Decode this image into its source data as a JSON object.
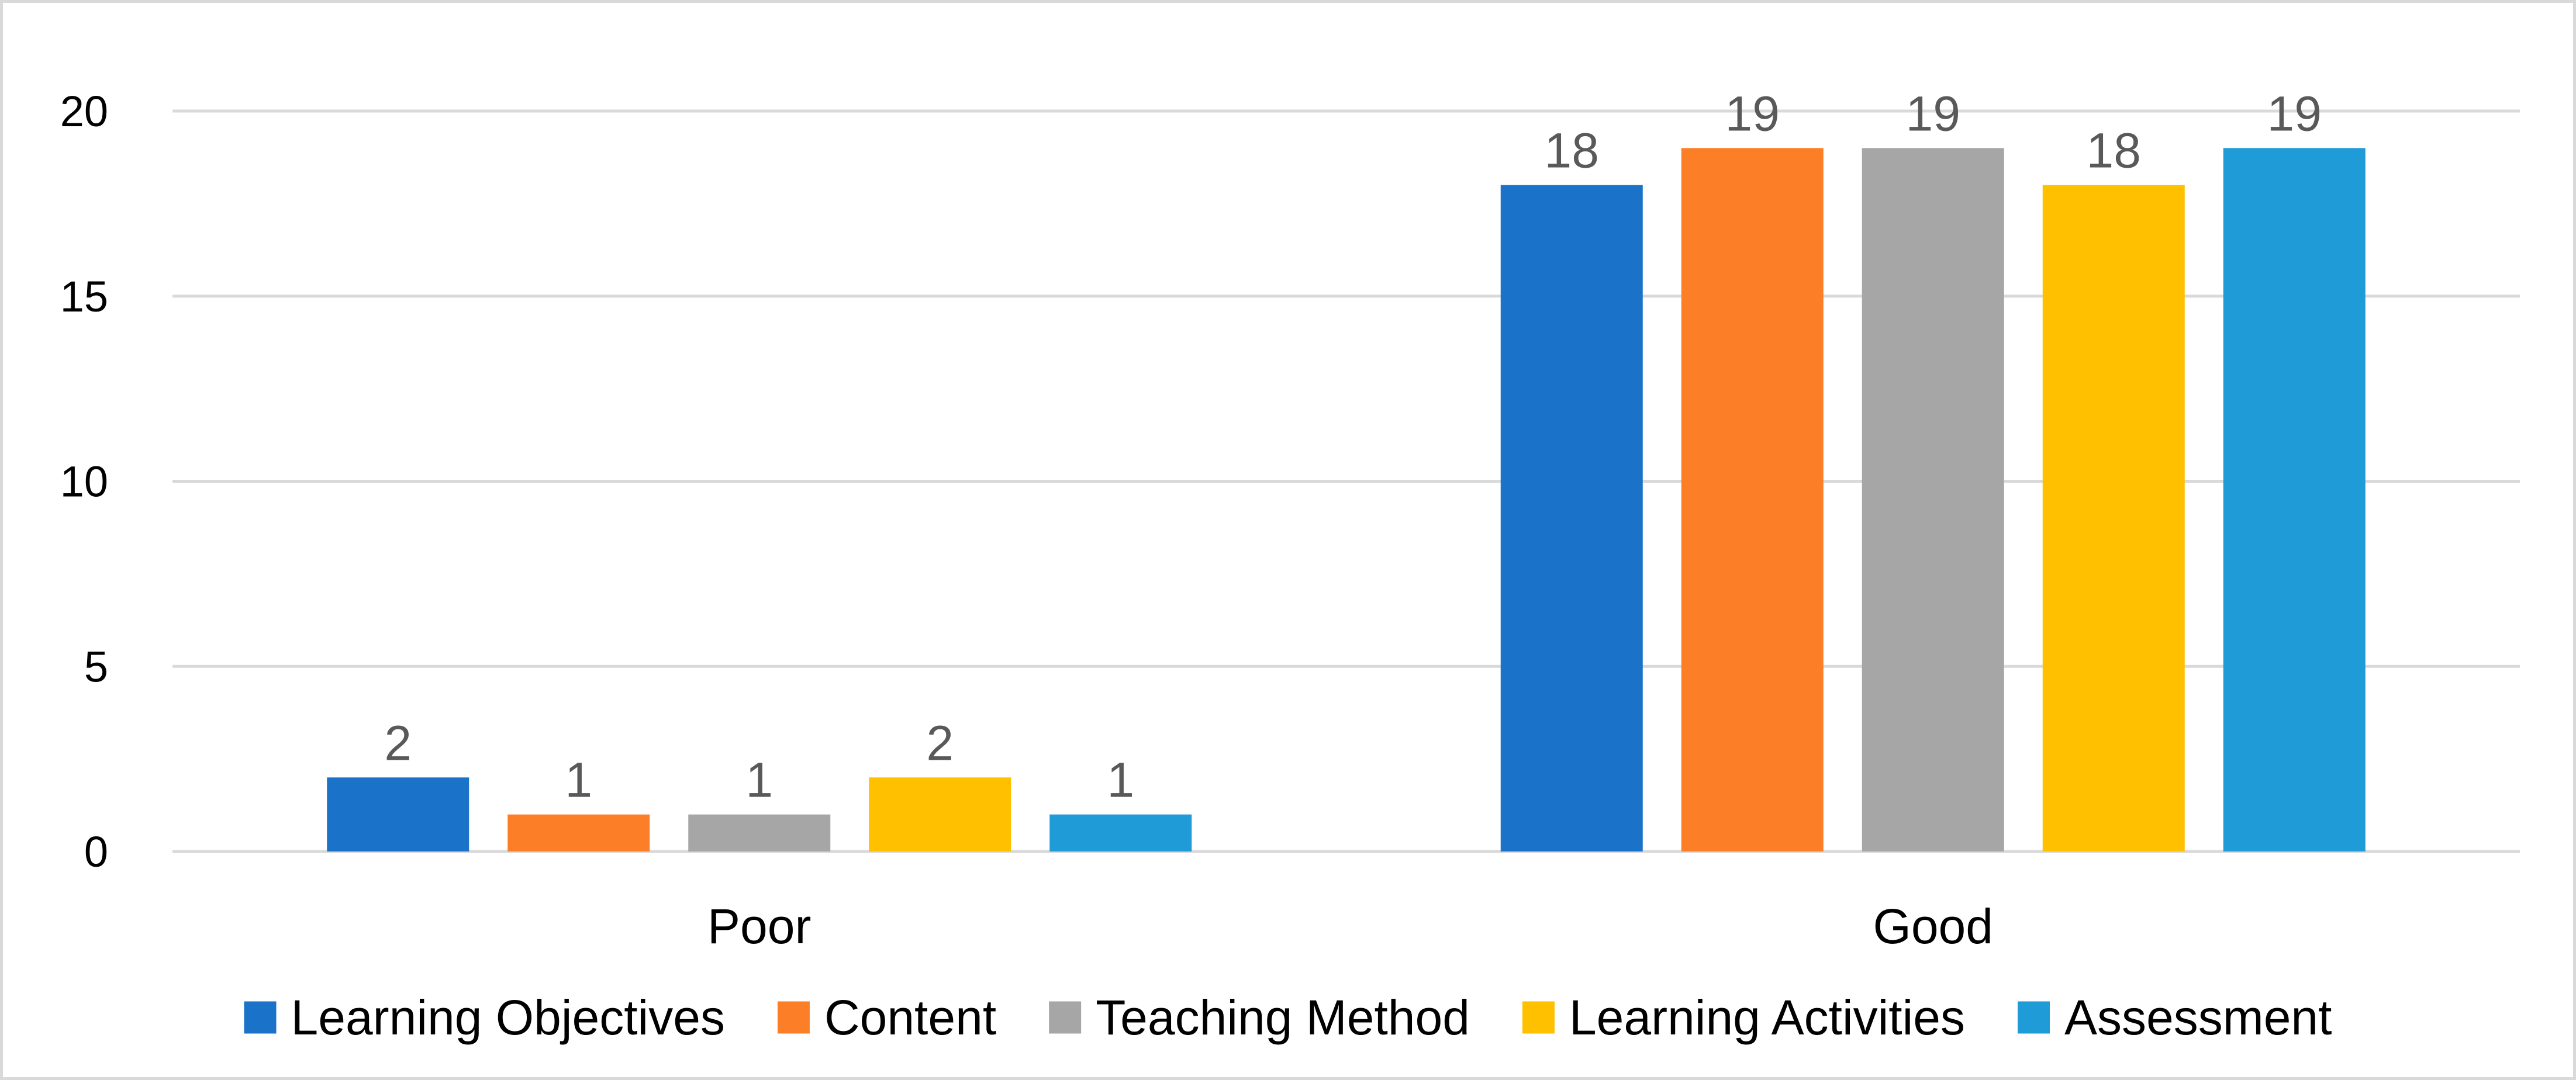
{
  "chart_data": {
    "type": "bar",
    "categories": [
      "Poor",
      "Good"
    ],
    "series": [
      {
        "name": "Learning Objectives",
        "color": "#1a72c9",
        "values": [
          2,
          18
        ]
      },
      {
        "name": "Content",
        "color": "#fc7f28",
        "values": [
          1,
          19
        ]
      },
      {
        "name": "Teaching Method",
        "color": "#a6a6a6",
        "values": [
          1,
          19
        ]
      },
      {
        "name": "Learning Activities",
        "color": "#ffc000",
        "values": [
          2,
          18
        ]
      },
      {
        "name": "Assessment",
        "color": "#1f9bd8",
        "values": [
          1,
          19
        ]
      }
    ],
    "title": "",
    "xlabel": "",
    "ylabel": "",
    "ylim": [
      0,
      20
    ],
    "yticks": [
      0,
      5,
      10,
      15,
      20
    ],
    "grid": true,
    "gridline_color": "#d9d9d9",
    "legend_position": "bottom",
    "data_labels": true
  }
}
